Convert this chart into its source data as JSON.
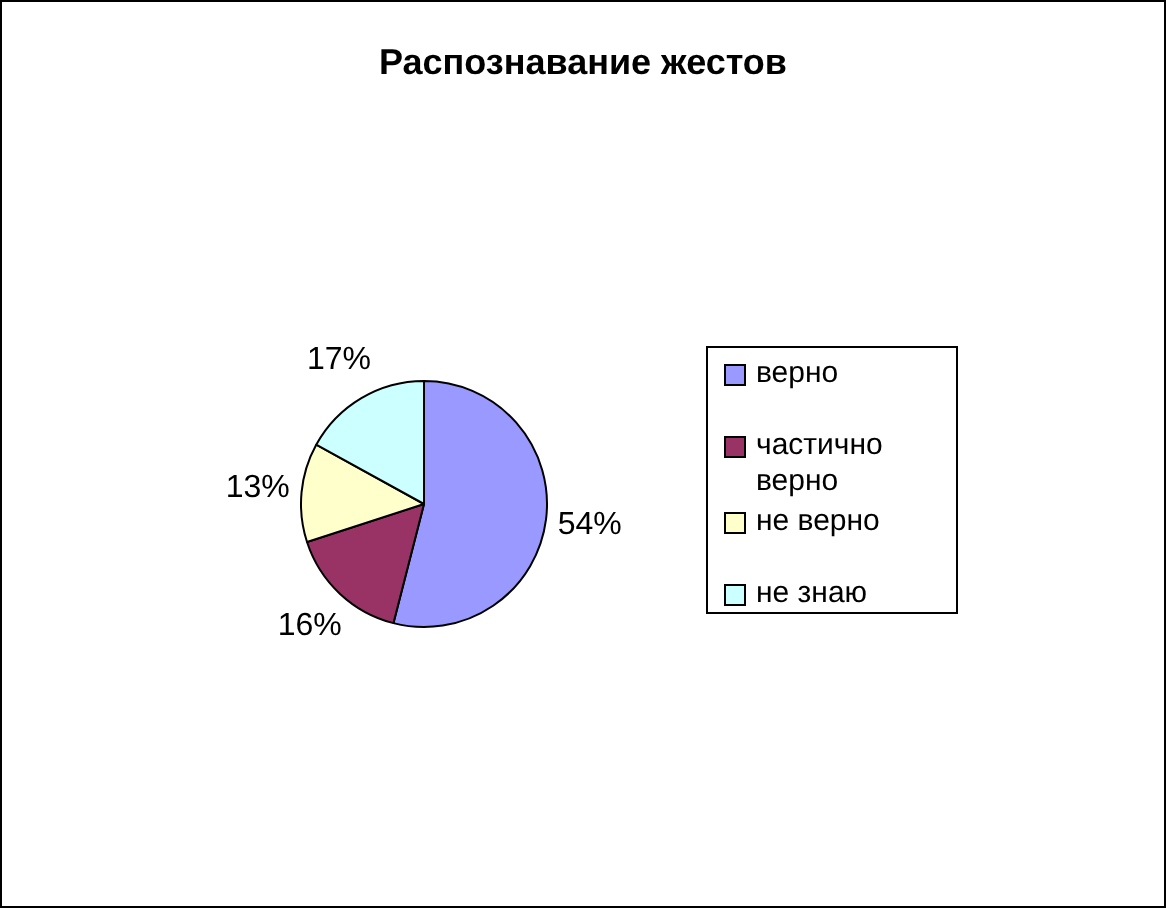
{
  "chart_data": {
    "type": "pie",
    "title": "Распознавание жестов",
    "categories": [
      "верно",
      "частично верно",
      "не верно",
      "не знаю"
    ],
    "values": [
      54,
      16,
      13,
      17
    ],
    "value_labels": [
      "54%",
      "16%",
      "13%",
      "17%"
    ],
    "colors": [
      "#9999ff",
      "#993366",
      "#ffffcc",
      "#ccffff"
    ],
    "legend": "right"
  }
}
